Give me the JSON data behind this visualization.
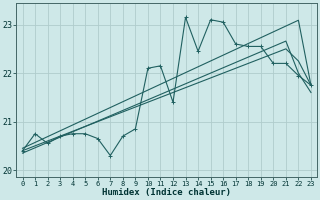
{
  "xlabel": "Humidex (Indice chaleur)",
  "bg_color": "#cee8e8",
  "grid_color": "#b0cccc",
  "line_color": "#206060",
  "x_values": [
    0,
    1,
    2,
    3,
    4,
    5,
    6,
    7,
    8,
    9,
    10,
    11,
    12,
    13,
    14,
    15,
    16,
    17,
    18,
    19,
    20,
    21,
    22,
    23
  ],
  "main_y": [
    20.4,
    20.75,
    20.55,
    20.7,
    20.75,
    20.75,
    20.65,
    20.3,
    20.7,
    20.85,
    22.1,
    22.15,
    21.4,
    23.15,
    22.45,
    23.1,
    23.05,
    22.6,
    22.55,
    22.55,
    22.2,
    22.2,
    21.95,
    21.75
  ],
  "trend1_y": [
    20.45,
    20.57,
    20.69,
    20.81,
    20.93,
    21.05,
    21.17,
    21.29,
    21.41,
    21.53,
    21.65,
    21.77,
    21.89,
    22.01,
    22.13,
    22.25,
    22.37,
    22.49,
    22.61,
    22.73,
    22.85,
    22.97,
    23.09,
    21.75
  ],
  "trend2_y": [
    20.4,
    20.5,
    20.6,
    20.7,
    20.8,
    20.9,
    21.0,
    21.1,
    21.2,
    21.3,
    21.4,
    21.5,
    21.6,
    21.7,
    21.8,
    21.9,
    22.0,
    22.1,
    22.2,
    22.3,
    22.4,
    22.5,
    22.25,
    21.75
  ],
  "trend3_y": [
    20.35,
    20.46,
    20.57,
    20.68,
    20.79,
    20.9,
    21.01,
    21.12,
    21.23,
    21.34,
    21.45,
    21.56,
    21.67,
    21.78,
    21.89,
    22.0,
    22.11,
    22.22,
    22.33,
    22.44,
    22.55,
    22.66,
    22.0,
    21.6
  ],
  "ylim": [
    19.85,
    23.45
  ],
  "yticks": [
    20,
    21,
    22,
    23
  ],
  "xticks": [
    0,
    1,
    2,
    3,
    4,
    5,
    6,
    7,
    8,
    9,
    10,
    11,
    12,
    13,
    14,
    15,
    16,
    17,
    18,
    19,
    20,
    21,
    22,
    23
  ]
}
